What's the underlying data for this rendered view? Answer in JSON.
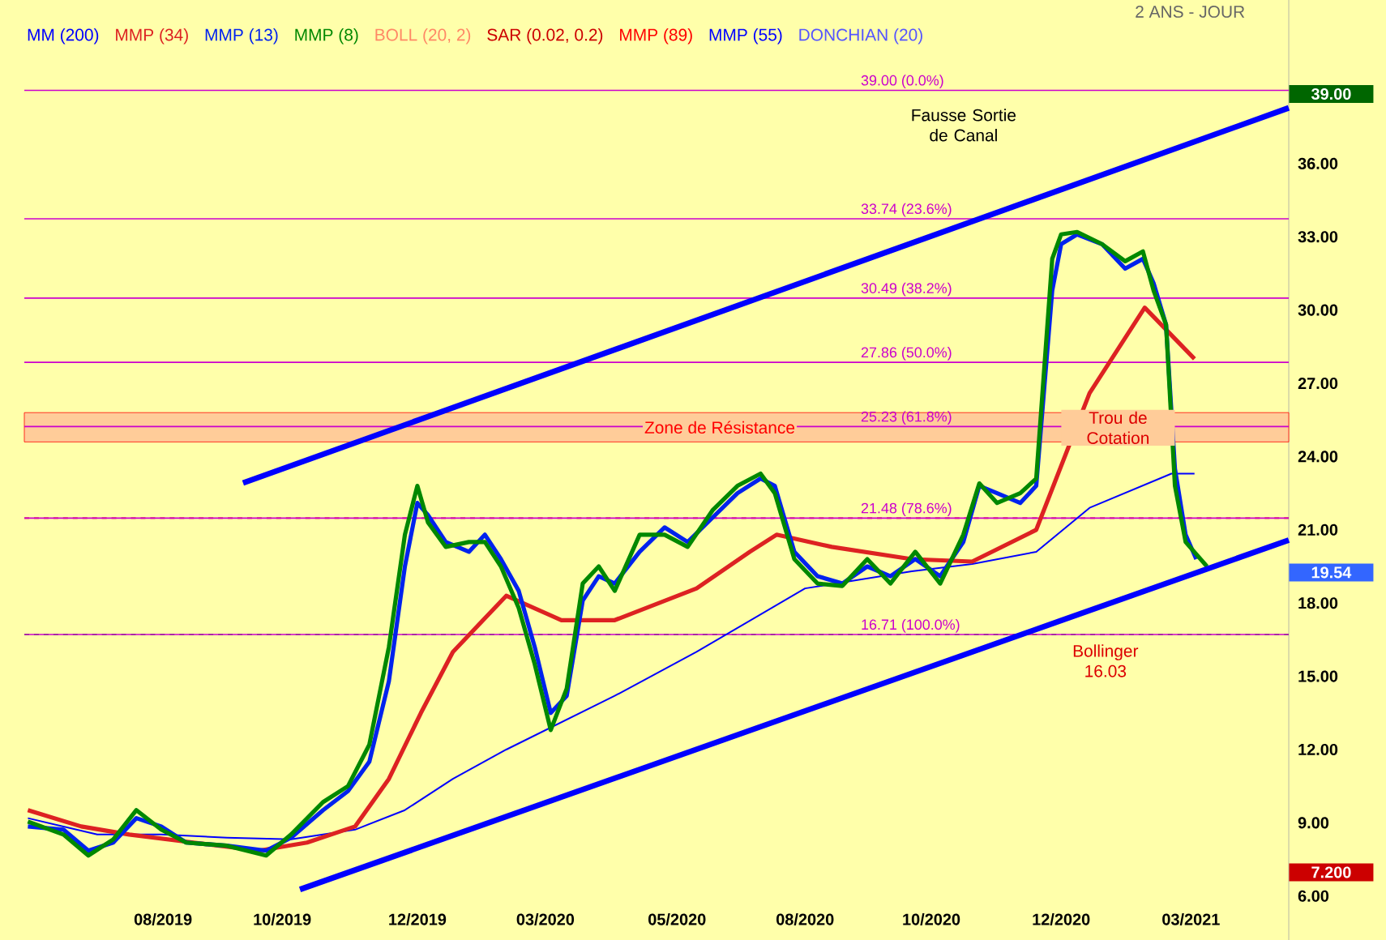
{
  "chart_data": {
    "type": "line",
    "subtitle": "2 ANS - JOUR",
    "xlim": [
      "2019-05-24",
      "2021-05-04"
    ],
    "ylim": [
      4.2,
      42.7
    ],
    "xticks": [
      {
        "value": "2019-08-10",
        "label": "08/2019"
      },
      {
        "value": "2019-10-16",
        "label": "10/2019"
      },
      {
        "value": "2019-12-31",
        "label": "12/2019"
      },
      {
        "value": "2020-03-12",
        "label": "03/2020"
      },
      {
        "value": "2020-05-25",
        "label": "05/2020"
      },
      {
        "value": "2020-08-05",
        "label": "08/2020"
      },
      {
        "value": "2020-10-15",
        "label": "10/2020"
      },
      {
        "value": "2020-12-27",
        "label": "12/2020"
      },
      {
        "value": "2021-03-10",
        "label": "03/2021"
      }
    ],
    "yticks": [
      {
        "value": 6,
        "label": "6.00"
      },
      {
        "value": 9,
        "label": "9.00"
      },
      {
        "value": 12,
        "label": "12.00"
      },
      {
        "value": 15,
        "label": "15.00"
      },
      {
        "value": 18,
        "label": "18.00"
      },
      {
        "value": 21,
        "label": "21.00"
      },
      {
        "value": 24,
        "label": "24.00"
      },
      {
        "value": 27,
        "label": "27.00"
      },
      {
        "value": 30,
        "label": "30.00"
      },
      {
        "value": 33,
        "label": "33.00"
      },
      {
        "value": 36,
        "label": "36.00"
      }
    ],
    "legend": "top left",
    "series": [
      {
        "name": "MM (200)",
        "color": "#0000ff",
        "x": [
          "2019-05-26",
          "2019-07-04",
          "2019-08-09",
          "2019-09-15",
          "2019-10-21",
          "2019-11-26",
          "2019-12-24",
          "2020-01-20",
          "2020-02-19",
          "2020-04-20",
          "2020-06-05",
          "2020-08-05",
          "2020-10-04",
          "2020-11-07",
          "2020-12-13",
          "2021-01-12",
          "2021-02-27",
          "2021-03-12"
        ],
        "values": [
          9.19,
          8.52,
          8.52,
          8.39,
          8.32,
          8.72,
          9.52,
          10.8,
          12.0,
          14.2,
          16.0,
          18.6,
          19.3,
          19.6,
          20.1,
          21.9,
          23.3,
          23.3
        ]
      },
      {
        "name": "MMP (34)",
        "color": "#dd2222",
        "x": [
          "2019-05-26",
          "2019-06-25",
          "2019-07-22",
          "2019-08-27",
          "2019-10-03",
          "2019-10-30",
          "2019-11-26",
          "2019-12-15",
          "2020-01-02",
          "2020-01-20",
          "2020-02-19",
          "2020-03-21",
          "2020-04-20",
          "2020-06-05",
          "2020-07-05",
          "2020-07-20",
          "2020-08-20",
          "2020-10-04",
          "2020-11-07",
          "2020-12-13",
          "2021-01-12",
          "2021-02-12",
          "2021-03-12"
        ],
        "values": [
          9.52,
          8.85,
          8.52,
          8.19,
          7.86,
          8.19,
          8.85,
          10.8,
          13.5,
          16.0,
          18.3,
          17.3,
          17.3,
          18.6,
          20.1,
          20.8,
          20.3,
          19.8,
          19.7,
          21.0,
          26.6,
          30.1,
          28.0
        ]
      },
      {
        "name": "MMP (13)",
        "color": "#0022ee",
        "x": [
          "2019-05-26",
          "2019-06-15",
          "2019-06-29",
          "2019-07-13",
          "2019-07-26",
          "2019-08-09",
          "2019-08-23",
          "2019-09-15",
          "2019-10-07",
          "2019-10-21",
          "2019-11-08",
          "2019-11-22",
          "2019-12-04",
          "2019-12-15",
          "2019-12-24",
          "2019-12-31",
          "2020-01-06",
          "2020-01-16",
          "2020-01-29",
          "2020-02-07",
          "2020-02-16",
          "2020-02-26",
          "2020-03-06",
          "2020-03-15",
          "2020-03-24",
          "2020-04-02",
          "2020-04-11",
          "2020-04-20",
          "2020-05-04",
          "2020-05-18",
          "2020-05-31",
          "2020-06-14",
          "2020-06-28",
          "2020-07-11",
          "2020-07-19",
          "2020-07-30",
          "2020-08-12",
          "2020-08-26",
          "2020-09-09",
          "2020-09-22",
          "2020-10-06",
          "2020-10-20",
          "2020-11-02",
          "2020-11-11",
          "2020-11-21",
          "2020-12-04",
          "2020-12-13",
          "2020-12-22",
          "2020-12-27",
          "2021-01-05",
          "2021-01-19",
          "2021-02-01",
          "2021-02-11",
          "2021-02-17",
          "2021-02-24",
          "2021-03-01",
          "2021-03-07",
          "2021-03-13"
        ],
        "values": [
          8.85,
          8.72,
          7.86,
          8.19,
          9.19,
          8.85,
          8.19,
          8.06,
          7.86,
          8.39,
          9.52,
          10.3,
          11.5,
          14.8,
          19.5,
          22.1,
          21.6,
          20.5,
          20.1,
          20.8,
          19.8,
          18.5,
          16.2,
          13.5,
          14.2,
          18.1,
          19.1,
          18.8,
          20.1,
          21.1,
          20.5,
          21.5,
          22.5,
          23.1,
          22.8,
          20.1,
          19.1,
          18.8,
          19.5,
          19.1,
          19.8,
          19.1,
          20.5,
          22.8,
          22.5,
          22.1,
          22.8,
          30.8,
          32.7,
          33.1,
          32.7,
          31.7,
          32.1,
          31.1,
          29.4,
          23.5,
          20.8,
          19.8
        ]
      },
      {
        "name": "MMP (8)",
        "color": "#008800",
        "x": [
          "2019-05-26",
          "2019-06-15",
          "2019-06-29",
          "2019-07-13",
          "2019-07-26",
          "2019-08-09",
          "2019-08-23",
          "2019-09-15",
          "2019-10-07",
          "2019-10-21",
          "2019-11-08",
          "2019-11-22",
          "2019-12-04",
          "2019-12-15",
          "2019-12-24",
          "2019-12-31",
          "2020-01-06",
          "2020-01-16",
          "2020-01-29",
          "2020-02-07",
          "2020-02-16",
          "2020-02-26",
          "2020-03-06",
          "2020-03-15",
          "2020-03-24",
          "2020-04-02",
          "2020-04-11",
          "2020-04-20",
          "2020-05-04",
          "2020-05-18",
          "2020-05-31",
          "2020-06-14",
          "2020-06-28",
          "2020-07-11",
          "2020-07-19",
          "2020-07-30",
          "2020-08-12",
          "2020-08-26",
          "2020-09-09",
          "2020-09-22",
          "2020-10-06",
          "2020-10-20",
          "2020-11-02",
          "2020-11-11",
          "2020-11-21",
          "2020-12-04",
          "2020-12-13",
          "2020-12-22",
          "2020-12-27",
          "2021-01-05",
          "2021-01-19",
          "2021-02-01",
          "2021-02-11",
          "2021-02-17",
          "2021-02-24",
          "2021-03-01",
          "2021-03-07",
          "2021-03-19"
        ],
        "values": [
          9.05,
          8.52,
          7.66,
          8.32,
          9.52,
          8.72,
          8.19,
          8.06,
          7.66,
          8.52,
          9.85,
          10.5,
          12.2,
          16.2,
          20.8,
          22.8,
          21.3,
          20.3,
          20.5,
          20.5,
          19.5,
          17.8,
          15.5,
          12.8,
          14.5,
          18.8,
          19.5,
          18.5,
          20.8,
          20.8,
          20.3,
          21.8,
          22.8,
          23.3,
          22.5,
          19.8,
          18.8,
          18.7,
          19.8,
          18.8,
          20.1,
          18.8,
          20.8,
          22.9,
          22.1,
          22.5,
          23.1,
          32.1,
          33.1,
          33.2,
          32.7,
          32.0,
          32.4,
          30.8,
          29.4,
          22.8,
          20.5,
          19.5
        ]
      },
      {
        "color": "#0000ff",
        "x": [
          "2019-09-24",
          "2021-05-04"
        ],
        "values": [
          22.92,
          38.28
        ]
      },
      {
        "color": "#0000ff",
        "x": [
          "2019-10-26",
          "2021-05-04"
        ],
        "values": [
          6.27,
          20.58
        ]
      }
    ],
    "bands": [
      {
        "axis": "y",
        "from": 24.6,
        "to": 25.8,
        "label": "Zone de Résistance",
        "color": "#ffcc99"
      }
    ],
    "ref_lines": [
      {
        "axis": "y",
        "value": 21.48,
        "color": "#e00000",
        "line_style": "dashed"
      },
      {
        "axis": "y",
        "value": 16.71,
        "color": "#008800",
        "line_style": "dashed"
      },
      {
        "axis": "y",
        "value": 39.0,
        "label": "39.00  (0.0%)",
        "color": "#cc00cc",
        "line_style": "solid"
      },
      {
        "axis": "y",
        "value": 33.74,
        "label": "33.74  (23.6%)",
        "color": "#cc00cc",
        "line_style": "solid"
      },
      {
        "axis": "y",
        "value": 30.49,
        "label": "30.49  (38.2%)",
        "color": "#cc00cc",
        "line_style": "solid"
      },
      {
        "axis": "y",
        "value": 27.86,
        "label": "27.86  (50.0%)",
        "color": "#cc00cc",
        "line_style": "solid"
      },
      {
        "axis": "y",
        "value": 25.23,
        "label": "25.23  (61.8%)",
        "color": "#cc00cc",
        "line_style": "solid"
      },
      {
        "axis": "y",
        "value": 21.48,
        "label": "21.48  (78.6%)",
        "color": "#cc00cc",
        "line_style": "solid"
      },
      {
        "axis": "y",
        "value": 16.71,
        "label": "16.71  (100.0%)",
        "color": "#cc00cc",
        "line_style": "solid"
      }
    ],
    "annotations": [
      "BOLL (20, 2)",
      "SAR (0.02, 0.2)",
      "MMP (89)",
      "MMP (55)",
      "DONCHIAN (20)",
      "Fausse Sortie de Canal",
      "Trou de Cotation",
      "Bollinger 16.03",
      "39.00",
      "19.54",
      "7.200"
    ]
  }
}
